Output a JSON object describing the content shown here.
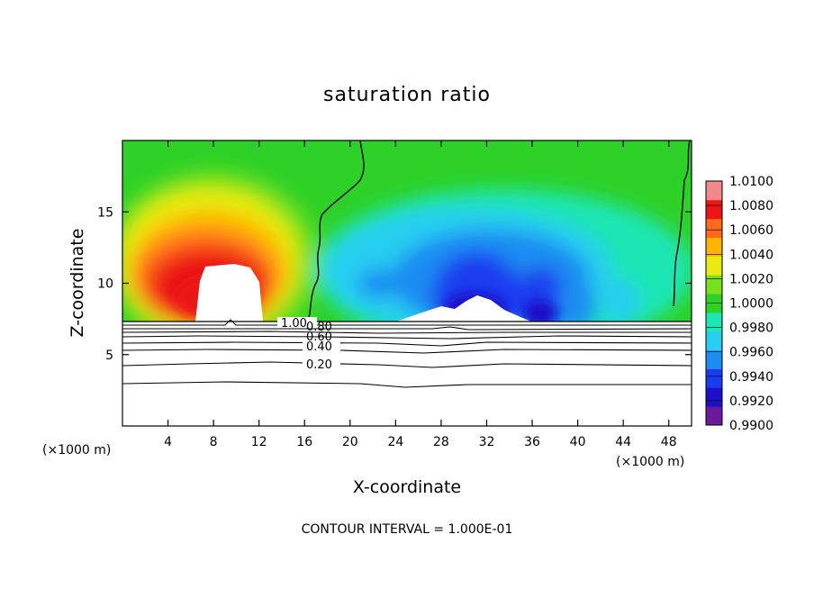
{
  "chart_data": {
    "type": "heatmap",
    "title": "saturation ratio",
    "xlabel": "X-coordinate",
    "ylabel": "Z-coordinate",
    "x_unit": "(×1000 m)",
    "x_unit_right": "(×1000 m)",
    "footer": "CONTOUR INTERVAL = 1.000E-01",
    "xlim": [
      0,
      50
    ],
    "ylim": [
      0,
      20
    ],
    "x_ticks": [
      4,
      8,
      12,
      16,
      20,
      24,
      28,
      32,
      36,
      40,
      44,
      48
    ],
    "y_ticks": [
      5,
      10,
      15
    ],
    "grid": false,
    "colorbar": {
      "labels": [
        "0.9900",
        "0.9920",
        "0.9940",
        "0.9960",
        "0.9980",
        "1.0000",
        "1.0020",
        "1.0040",
        "1.0060",
        "1.0080",
        "1.0100"
      ],
      "colors": [
        "#6b1a9c",
        "#1e10c8",
        "#1a3cf0",
        "#1e8cf2",
        "#28cdf0",
        "#1ee6b4",
        "#2ed128",
        "#78e01e",
        "#e8ea10",
        "#ffb400",
        "#ff6a1a",
        "#ec1414",
        "#f08a8a"
      ]
    },
    "contour_labels": [
      "1.00",
      "0.80",
      "0.60",
      "0.40",
      "0.20"
    ],
    "cloud_base_z": 7.2
  }
}
